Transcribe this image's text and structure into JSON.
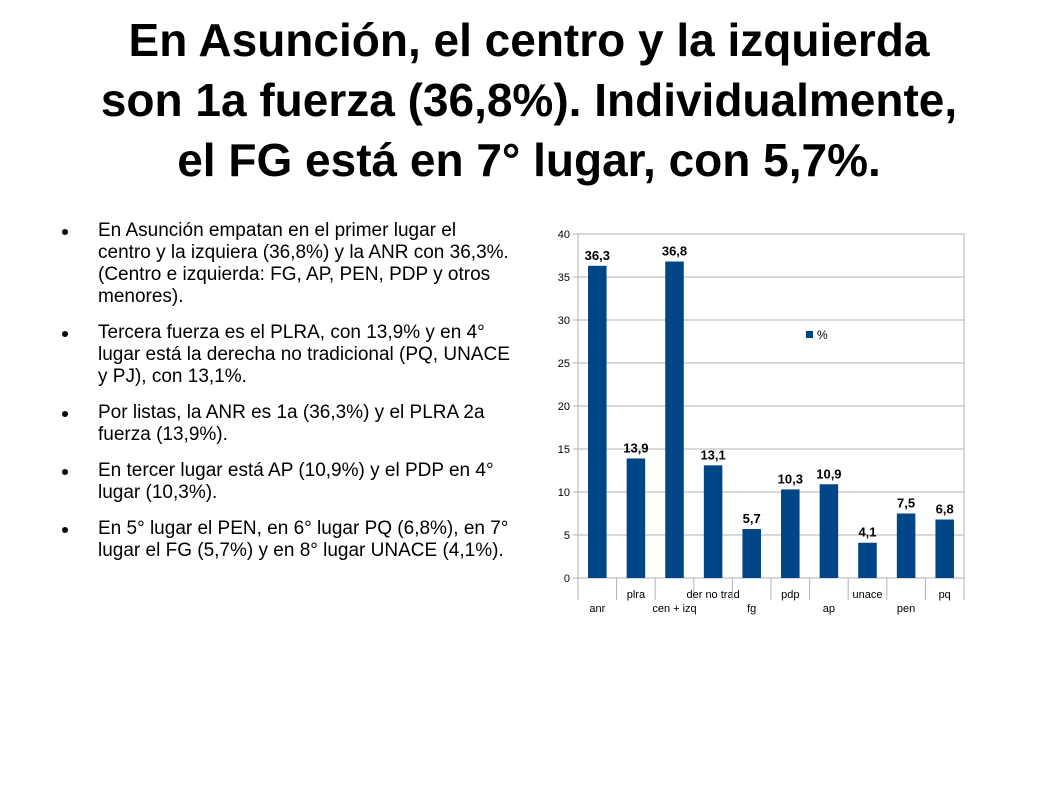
{
  "title": {
    "lines": [
      "En Asunción, el centro y la izquierda",
      "son 1a fuerza (36,8%). Individualmente,",
      "el FG está en 7° lugar, con 5,7%."
    ]
  },
  "bullets": [
    "En Asunción empatan en el primer lugar el centro y la izquiera (36,8%) y la ANR con 36,3%. (Centro e izquierda: FG, AP, PEN, PDP y otros menores).",
    "Tercera fuerza es el PLRA, con 13,9% y en 4° lugar está la derecha no tradicional (PQ, UNACE y PJ), con 13,1%.",
    "Por listas, la ANR es 1a (36,3%) y el PLRA 2a fuerza (13,9%).",
    "En tercer lugar está AP (10,9%) y el PDP en 4° lugar (10,3%).",
    "En 5° lugar el PEN, en 6° lugar PQ (6,8%), en 7° lugar el FG (5,7%) y en 8° lugar UNACE (4,1%)."
  ],
  "chart_data": {
    "type": "bar",
    "categories": [
      "anr",
      "plra",
      "cen + izq",
      "der no trad",
      "fg",
      "pdp",
      "ap",
      "unace",
      "pen",
      "pq"
    ],
    "series": [
      {
        "name": "%",
        "values": [
          36.3,
          13.9,
          36.8,
          13.1,
          5.7,
          10.3,
          10.9,
          4.1,
          7.5,
          6.8
        ],
        "data_labels": [
          "36,3",
          "13,9",
          "36,8",
          "13,1",
          "5,7",
          "10,3",
          "10,9",
          "4,1",
          "7,5",
          "6,8"
        ]
      }
    ],
    "ylim": [
      0,
      40
    ],
    "yticks": [
      0,
      5,
      10,
      15,
      20,
      25,
      30,
      35,
      40
    ],
    "grid": true,
    "legend": "inside-top-right",
    "bar_color": "#004586"
  }
}
